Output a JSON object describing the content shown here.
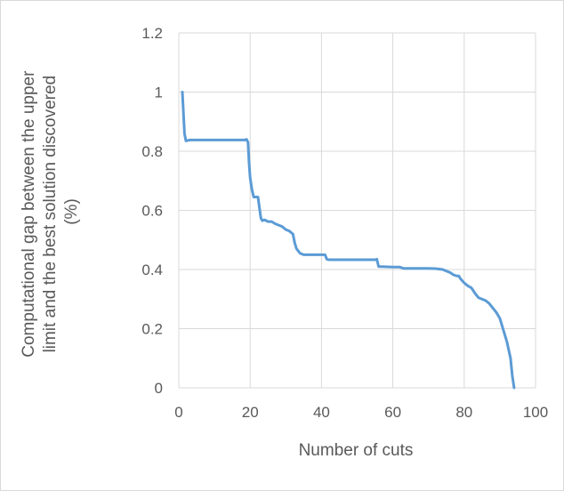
{
  "chart_data": {
    "type": "line",
    "title": "",
    "xlabel": "Number of cuts",
    "ylabel_lines": [
      "Computational gap between the upper",
      "limit and the best solution discovered",
      "(%)"
    ],
    "xlim": [
      0,
      100
    ],
    "ylim": [
      0,
      1.2
    ],
    "x_ticks": [
      0,
      20,
      40,
      60,
      80,
      100
    ],
    "y_ticks": [
      0,
      0.2,
      0.4,
      0.6,
      0.8,
      1,
      1.2
    ],
    "x_tick_labels": [
      "0",
      "20",
      "40",
      "60",
      "80",
      "100"
    ],
    "y_tick_labels": [
      "0",
      "0.2",
      "0.4",
      "0.6",
      "0.8",
      "1",
      "1.2"
    ],
    "grid": true,
    "legend": "none",
    "series_color": "#5b9bd5",
    "gridline_color": "#d9d9d9",
    "series": [
      {
        "x": [
          1,
          1.6,
          2,
          3,
          5,
          10,
          15,
          18.5,
          19,
          19.4,
          19.7,
          20,
          20.5,
          21,
          21.5,
          22.2,
          22.6,
          23,
          23.4,
          24,
          25,
          26,
          27,
          28,
          29,
          30,
          31,
          32,
          32.5,
          33,
          34,
          35,
          36,
          38,
          40,
          41,
          41.5,
          42,
          45,
          50,
          55,
          55.5,
          56,
          57,
          60,
          62,
          63,
          65,
          70,
          72,
          74,
          75,
          76,
          77,
          78,
          78.5,
          79,
          80,
          81,
          82,
          82.5,
          83,
          84,
          85,
          86,
          87,
          88,
          89,
          90,
          91,
          92,
          93,
          93.5,
          94
        ],
        "y": [
          1.0,
          0.86,
          0.835,
          0.838,
          0.838,
          0.838,
          0.838,
          0.838,
          0.84,
          0.83,
          0.76,
          0.71,
          0.67,
          0.645,
          0.645,
          0.645,
          0.61,
          0.575,
          0.565,
          0.568,
          0.562,
          0.562,
          0.555,
          0.55,
          0.545,
          0.535,
          0.53,
          0.52,
          0.49,
          0.47,
          0.455,
          0.45,
          0.45,
          0.45,
          0.45,
          0.45,
          0.435,
          0.433,
          0.433,
          0.433,
          0.433,
          0.435,
          0.41,
          0.41,
          0.408,
          0.408,
          0.404,
          0.404,
          0.404,
          0.403,
          0.4,
          0.395,
          0.39,
          0.382,
          0.378,
          0.378,
          0.368,
          0.355,
          0.345,
          0.338,
          0.33,
          0.32,
          0.305,
          0.3,
          0.295,
          0.285,
          0.27,
          0.255,
          0.235,
          0.195,
          0.155,
          0.1,
          0.04,
          0.0
        ]
      }
    ]
  }
}
